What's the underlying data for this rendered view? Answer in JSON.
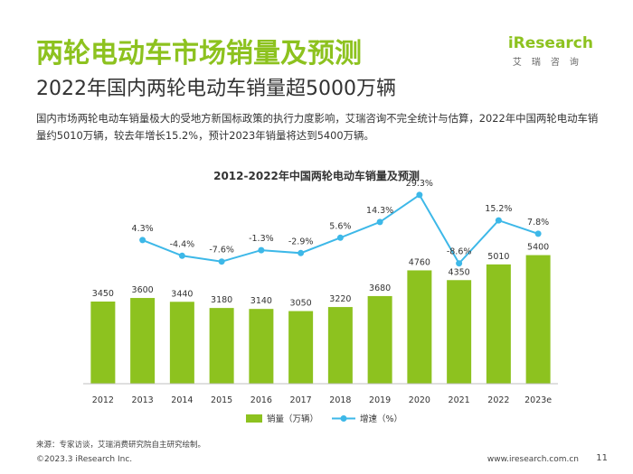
{
  "page": {
    "title": "两轮电动车市场销量及预测",
    "subtitle": "2022年国内两轮电动车销量超5000万辆",
    "description": "国内市场两轮电动车销量极大的受地方新国标政策的执行力度影响，艾瑞咨询不完全统计与估算，2022年中国两轮电动车销量约5010万辆，较去年增长15.2%，预计2023年销量将达到5400万辆。",
    "source": "来源：专家访谈，艾瑞消费研究院自主研究绘制。",
    "copyright": "©2023.3 iResearch Inc.",
    "website": "www.iresearch.com.cn",
    "page_number": "11"
  },
  "logo": {
    "text": "iResearch",
    "chinese": "艾瑞咨询"
  },
  "colors": {
    "title_green": "#8DC21F",
    "bar_green": "#8DC21F",
    "line_blue": "#3DB8E8"
  },
  "chart_data": {
    "type": "bar+line",
    "title": "2012-2022年中国两轮电动车销量及预测",
    "categories": [
      "2012",
      "2013",
      "2014",
      "2015",
      "2016",
      "2017",
      "2018",
      "2019",
      "2020",
      "2021",
      "2022",
      "2023e"
    ],
    "series": [
      {
        "name": "销量（万辆）",
        "type": "bar",
        "values": [
          3450,
          3600,
          3440,
          3180,
          3140,
          3050,
          3220,
          3680,
          4760,
          4350,
          5010,
          5400
        ],
        "labels": [
          "3450",
          "3600",
          "3440",
          "3180",
          "3140",
          "3050",
          "3220",
          "3680",
          "4760",
          "4350",
          "5010",
          "5400"
        ]
      },
      {
        "name": "增速（%）",
        "type": "line",
        "values": [
          null,
          4.3,
          -4.4,
          -7.6,
          -1.3,
          -2.9,
          5.6,
          14.3,
          29.3,
          -8.6,
          15.2,
          7.8
        ],
        "labels": [
          "",
          "4.3%",
          "-4.4%",
          "-7.6%",
          "-1.3%",
          "-2.9%",
          "5.6%",
          "14.3%",
          "29.3%",
          "-8.6%",
          "15.2%",
          "7.8%"
        ]
      }
    ],
    "legend_position": "bottom",
    "grid": false
  }
}
